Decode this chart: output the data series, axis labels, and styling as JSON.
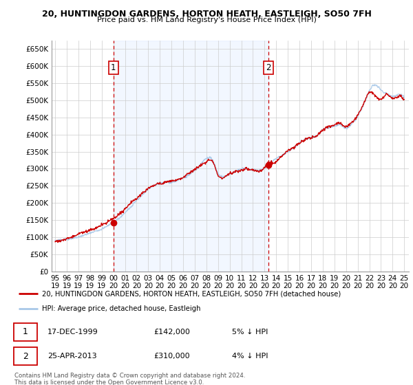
{
  "title": "20, HUNTINGDON GARDENS, HORTON HEATH, EASTLEIGH, SO50 7FH",
  "subtitle": "Price paid vs. HM Land Registry's House Price Index (HPI)",
  "ylim": [
    0,
    675000
  ],
  "yticks": [
    0,
    50000,
    100000,
    150000,
    200000,
    250000,
    300000,
    350000,
    400000,
    450000,
    500000,
    550000,
    600000,
    650000
  ],
  "ytick_labels": [
    "£0",
    "£50K",
    "£100K",
    "£150K",
    "£200K",
    "£250K",
    "£300K",
    "£350K",
    "£400K",
    "£450K",
    "£500K",
    "£550K",
    "£600K",
    "£650K"
  ],
  "purchase1_date": 2000.0,
  "purchase1_price": 142000,
  "purchase2_date": 2013.33,
  "purchase2_price": 310000,
  "legend_line1": "20, HUNTINGDON GARDENS, HORTON HEATH, EASTLEIGH, SO50 7FH (detached house)",
  "legend_line2": "HPI: Average price, detached house, Eastleigh",
  "table_row1": [
    "1",
    "17-DEC-1999",
    "£142,000",
    "5% ↓ HPI"
  ],
  "table_row2": [
    "2",
    "25-APR-2013",
    "£310,000",
    "4% ↓ HPI"
  ],
  "footer": "Contains HM Land Registry data © Crown copyright and database right 2024.\nThis data is licensed under the Open Government Licence v3.0.",
  "hpi_color": "#a8c8e8",
  "hpi_fill_color": "#ddeeff",
  "price_color": "#cc0000",
  "bg_color": "#ffffff",
  "grid_color": "#cccccc",
  "title_fontsize": 9,
  "subtitle_fontsize": 8,
  "axis_fontsize": 7.5
}
